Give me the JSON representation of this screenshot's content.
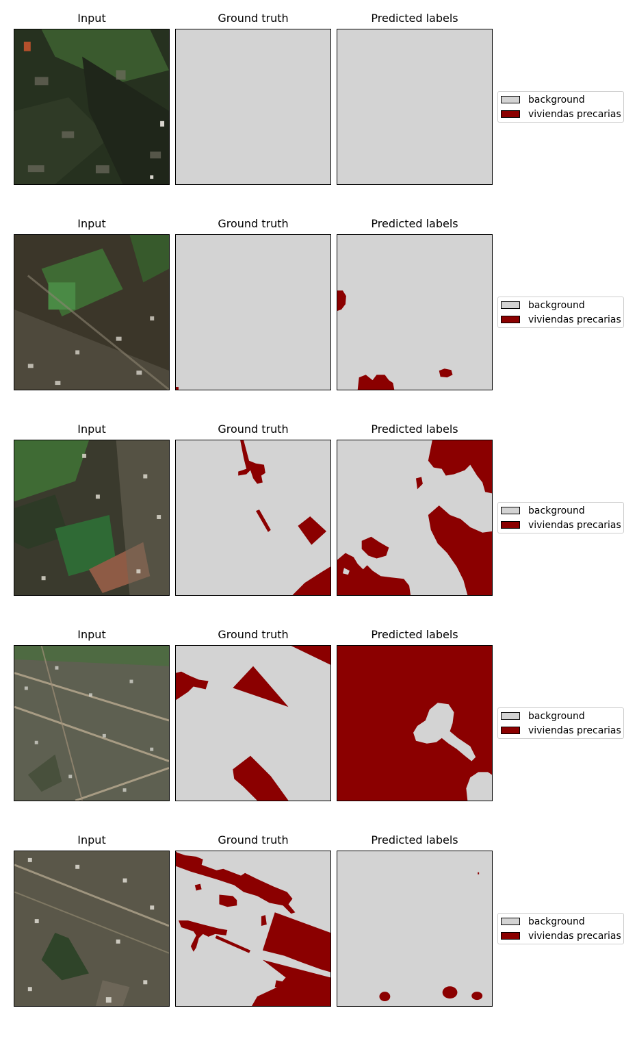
{
  "colors": {
    "background": "#d3d3d3",
    "viviendas": "#8b0000"
  },
  "rows": [
    {
      "titles": {
        "input": "Input",
        "ground_truth": "Ground truth",
        "predicted": "Predicted labels"
      },
      "legend": [
        {
          "label": "background",
          "color": "#d3d3d3"
        },
        {
          "label": "viviendas precarias",
          "color": "#8b0000"
        }
      ]
    },
    {
      "titles": {
        "input": "Input",
        "ground_truth": "Ground truth",
        "predicted": "Predicted labels"
      },
      "legend": [
        {
          "label": "background",
          "color": "#d3d3d3"
        },
        {
          "label": "viviendas precarias",
          "color": "#8b0000"
        }
      ]
    },
    {
      "titles": {
        "input": "Input",
        "ground_truth": "Ground truth",
        "predicted": "Predicted labels"
      },
      "legend": [
        {
          "label": "background",
          "color": "#d3d3d3"
        },
        {
          "label": "viviendas precarias",
          "color": "#8b0000"
        }
      ]
    },
    {
      "titles": {
        "input": "Input",
        "ground_truth": "Ground truth",
        "predicted": "Predicted labels"
      },
      "legend": [
        {
          "label": "background",
          "color": "#d3d3d3"
        },
        {
          "label": "viviendas precarias",
          "color": "#8b0000"
        }
      ]
    },
    {
      "titles": {
        "input": "Input",
        "ground_truth": "Ground truth",
        "predicted": "Predicted labels"
      },
      "legend": [
        {
          "label": "background",
          "color": "#d3d3d3"
        },
        {
          "label": "viviendas precarias",
          "color": "#8b0000"
        }
      ]
    }
  ]
}
